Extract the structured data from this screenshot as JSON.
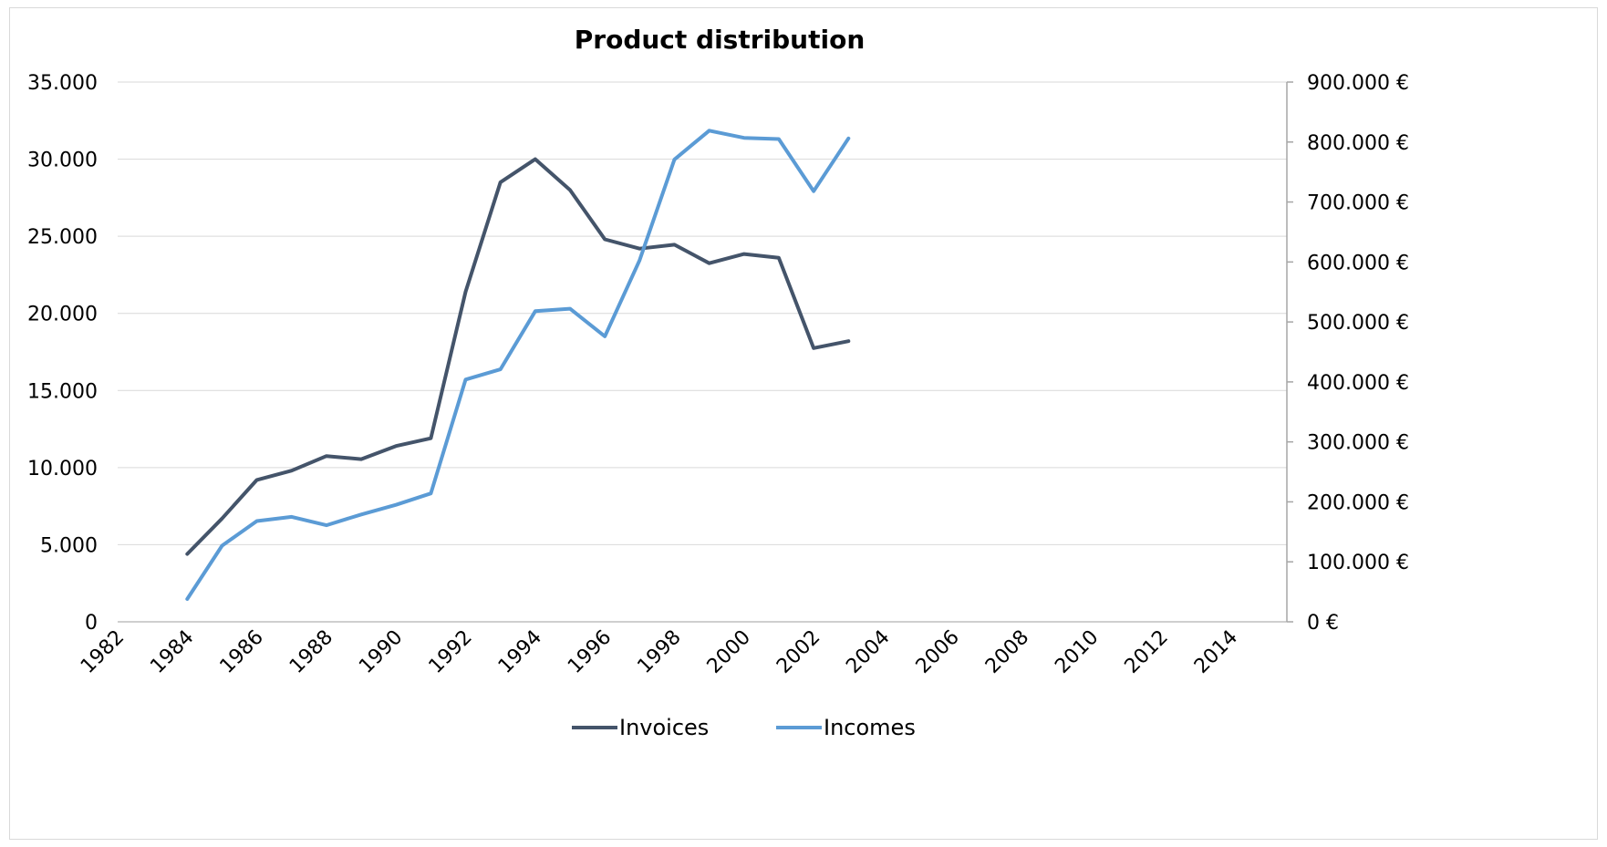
{
  "chart_data": {
    "type": "line",
    "title": "Product distribution",
    "xlabel": "",
    "ylabel": "",
    "y2label": "",
    "x_ticks": [
      1982,
      1984,
      1986,
      1988,
      1990,
      1992,
      1994,
      1996,
      1998,
      2000,
      2002,
      2004,
      2006,
      2008,
      2010,
      2012,
      2014
    ],
    "xlim": [
      1982,
      2015.6
    ],
    "ylim": [
      0,
      35000
    ],
    "y_ticks": [
      0,
      5000,
      10000,
      15000,
      20000,
      25000,
      30000,
      35000
    ],
    "y_tick_labels": [
      "0",
      "5.000",
      "10.000",
      "15.000",
      "20.000",
      "25.000",
      "30.000",
      "35.000"
    ],
    "y2lim": [
      0,
      900000
    ],
    "y2_ticks": [
      0,
      100000,
      200000,
      300000,
      400000,
      500000,
      600000,
      700000,
      800000,
      900000
    ],
    "y2_tick_labels": [
      "0 €",
      "100.000 €",
      "200.000 €",
      "300.000 €",
      "400.000 €",
      "500.000 €",
      "600.000 €",
      "700.000 €",
      "800.000 €",
      "900.000 €"
    ],
    "grid": true,
    "legend_position": "bottom-center",
    "x": [
      1984,
      1985,
      1986,
      1987,
      1988,
      1989,
      1990,
      1991,
      1992,
      1993,
      1994,
      1995,
      1996,
      1997,
      1998,
      1999,
      2000,
      2001,
      2002,
      2003
    ],
    "series": [
      {
        "name": "Invoices",
        "axis": "left",
        "color": "#44546a",
        "values": [
          4400,
          6700,
          9200,
          9800,
          10750,
          10550,
          11400,
          11900,
          21400,
          28500,
          30000,
          28000,
          24800,
          24200,
          24450,
          23250,
          23850,
          23600,
          17750,
          18200
        ]
      },
      {
        "name": "Incomes",
        "axis": "right",
        "color": "#5b9bd5",
        "values": [
          38000,
          127000,
          168000,
          175000,
          161000,
          179000,
          195000,
          214000,
          404000,
          421000,
          518000,
          522000,
          476000,
          603000,
          771000,
          819000,
          807000,
          805000,
          718000,
          806000
        ]
      }
    ]
  }
}
